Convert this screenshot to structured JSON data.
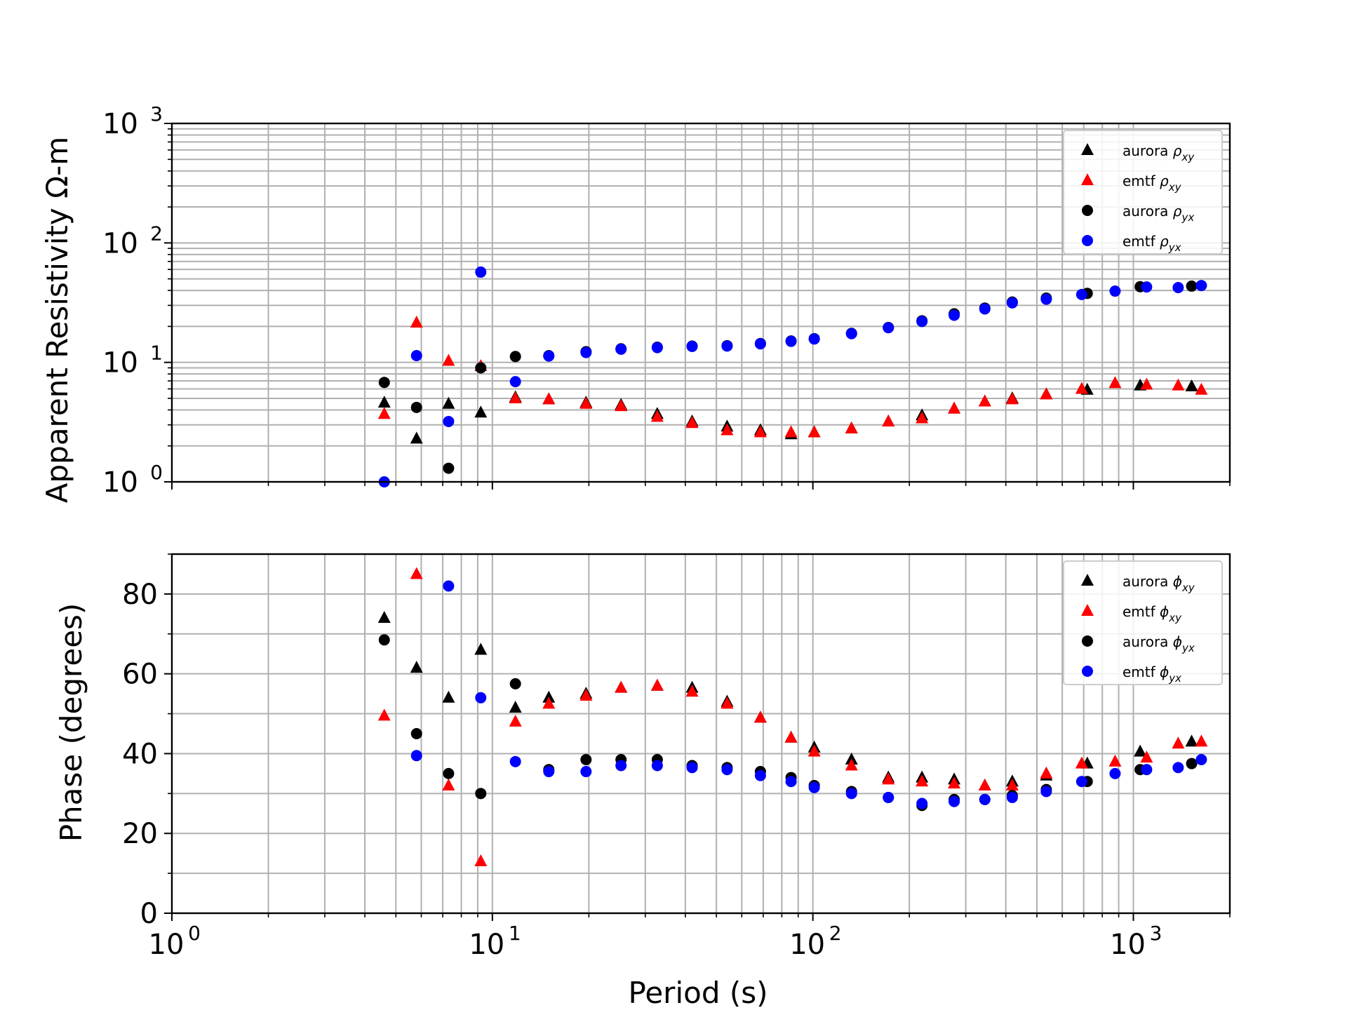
{
  "chart_data": [
    {
      "type": "scatter",
      "ylabel": "Apparent Resistivity Ω-m",
      "xlabel": "",
      "xscale": "log",
      "yscale": "log",
      "xlim": [
        1,
        2000
      ],
      "ylim": [
        1,
        1000
      ],
      "y_ticks": [
        {
          "value": 1,
          "base": "10",
          "exp": "0"
        },
        {
          "value": 10,
          "base": "10",
          "exp": "1"
        },
        {
          "value": 100,
          "base": "10",
          "exp": "2"
        },
        {
          "value": 1000,
          "base": "10",
          "exp": "3"
        }
      ],
      "grid": true,
      "legend_position": "top-right",
      "series": [
        {
          "name": "aurora",
          "sub": "xy",
          "marker": "triangle",
          "color": "#000000",
          "points": [
            [
              4.6,
              4.6
            ],
            [
              5.8,
              2.3
            ],
            [
              7.3,
              4.5
            ],
            [
              9.2,
              3.8
            ],
            [
              11.8,
              5.1
            ],
            [
              15.0,
              4.9
            ],
            [
              19.6,
              4.6
            ],
            [
              25.2,
              4.4
            ],
            [
              32.7,
              3.7
            ],
            [
              42.0,
              3.2
            ],
            [
              54.0,
              2.9
            ],
            [
              68.6,
              2.7
            ],
            [
              85.5,
              2.5
            ],
            [
              101.0,
              2.6
            ],
            [
              132.0,
              2.8
            ],
            [
              172.0,
              3.2
            ],
            [
              219.0,
              3.6
            ],
            [
              276.0,
              4.1
            ],
            [
              344.0,
              4.7
            ],
            [
              419.0,
              5.0
            ],
            [
              535.0,
              5.4
            ],
            [
              718.0,
              5.9
            ],
            [
              1050.0,
              6.4
            ],
            [
              1520.0,
              6.3
            ]
          ]
        },
        {
          "name": "emtf",
          "sub": "xy",
          "marker": "triangle",
          "color": "#ff0000",
          "points": [
            [
              4.6,
              3.7
            ],
            [
              5.8,
              21.5
            ],
            [
              7.3,
              10.3
            ],
            [
              9.2,
              9.3
            ],
            [
              11.8,
              5.0
            ],
            [
              15.0,
              4.9
            ],
            [
              19.6,
              4.5
            ],
            [
              25.2,
              4.3
            ],
            [
              32.7,
              3.5
            ],
            [
              42.0,
              3.1
            ],
            [
              54.0,
              2.7
            ],
            [
              68.6,
              2.6
            ],
            [
              85.5,
              2.6
            ],
            [
              101.0,
              2.6
            ],
            [
              132.0,
              2.8
            ],
            [
              172.0,
              3.2
            ],
            [
              219.0,
              3.4
            ],
            [
              276.0,
              4.1
            ],
            [
              344.0,
              4.7
            ],
            [
              419.0,
              4.9
            ],
            [
              535.0,
              5.4
            ],
            [
              690.0,
              6.0
            ],
            [
              877.0,
              6.7
            ],
            [
              1100.0,
              6.5
            ],
            [
              1380.0,
              6.4
            ],
            [
              1630.0,
              5.9
            ]
          ]
        },
        {
          "name": "aurora",
          "sub": "yx",
          "marker": "circle",
          "color": "#000000",
          "points": [
            [
              4.6,
              6.8
            ],
            [
              5.8,
              4.2
            ],
            [
              7.3,
              1.3
            ],
            [
              9.2,
              9.0
            ],
            [
              11.8,
              11.2
            ],
            [
              15.0,
              11.4
            ],
            [
              19.6,
              12.3
            ],
            [
              25.2,
              13.0
            ],
            [
              32.7,
              13.4
            ],
            [
              42.0,
              13.7
            ],
            [
              54.0,
              13.8
            ],
            [
              68.6,
              14.4
            ],
            [
              85.5,
              15.1
            ],
            [
              101.0,
              15.8
            ],
            [
              132.0,
              17.5
            ],
            [
              172.0,
              19.6
            ],
            [
              219.0,
              22.3
            ],
            [
              276.0,
              25.5
            ],
            [
              344.0,
              28.5
            ],
            [
              419.0,
              32.0
            ],
            [
              535.0,
              34.5
            ],
            [
              718.0,
              37.8
            ],
            [
              1050.0,
              43.0
            ],
            [
              1520.0,
              43.5
            ]
          ]
        },
        {
          "name": "emtf",
          "sub": "yx",
          "marker": "circle",
          "color": "#0000ff",
          "points": [
            [
              4.6,
              1.0
            ],
            [
              5.8,
              11.4
            ],
            [
              7.3,
              3.2
            ],
            [
              9.2,
              57.0
            ],
            [
              11.8,
              6.9
            ],
            [
              15.0,
              11.3
            ],
            [
              19.6,
              12.1
            ],
            [
              25.2,
              12.9
            ],
            [
              32.7,
              13.3
            ],
            [
              42.0,
              13.6
            ],
            [
              54.0,
              13.7
            ],
            [
              68.6,
              14.3
            ],
            [
              85.5,
              15.0
            ],
            [
              101.0,
              15.7
            ],
            [
              132.0,
              17.4
            ],
            [
              172.0,
              19.5
            ],
            [
              219.0,
              22.0
            ],
            [
              276.0,
              24.8
            ],
            [
              344.0,
              28.0
            ],
            [
              419.0,
              31.5
            ],
            [
              535.0,
              33.8
            ],
            [
              690.0,
              37.0
            ],
            [
              877.0,
              39.5
            ],
            [
              1100.0,
              42.8
            ],
            [
              1380.0,
              42.3
            ],
            [
              1630.0,
              44.0
            ]
          ]
        }
      ]
    },
    {
      "type": "scatter",
      "ylabel": "Phase (degrees)",
      "xlabel": "Period (s)",
      "xscale": "log",
      "yscale": "linear",
      "xlim": [
        1,
        2000
      ],
      "ylim": [
        0,
        90
      ],
      "x_ticks": [
        {
          "value": 1,
          "base": "10",
          "exp": "0"
        },
        {
          "value": 10,
          "base": "10",
          "exp": "1"
        },
        {
          "value": 100,
          "base": "10",
          "exp": "2"
        },
        {
          "value": 1000,
          "base": "10",
          "exp": "3"
        }
      ],
      "y_ticks": [
        "0",
        "20",
        "40",
        "60",
        "80"
      ],
      "grid": true,
      "legend_position": "top-right",
      "series": [
        {
          "name": "aurora",
          "sub": "xy",
          "marker": "triangle",
          "color": "#000000",
          "points": [
            [
              4.6,
              74
            ],
            [
              5.8,
              61.5
            ],
            [
              7.3,
              54
            ],
            [
              9.2,
              66
            ],
            [
              11.8,
              51.5
            ],
            [
              15.0,
              54
            ],
            [
              19.6,
              55
            ],
            [
              25.2,
              56.5
            ],
            [
              32.7,
              57
            ],
            [
              42.0,
              56.5
            ],
            [
              54.0,
              53
            ],
            [
              68.6,
              49
            ],
            [
              85.5,
              44
            ],
            [
              101.0,
              41.5
            ],
            [
              132.0,
              38.5
            ],
            [
              172.0,
              34
            ],
            [
              219.0,
              34
            ],
            [
              276.0,
              33.5
            ],
            [
              344.0,
              32
            ],
            [
              419.0,
              33
            ],
            [
              535.0,
              34.5
            ],
            [
              718.0,
              37.5
            ],
            [
              1050.0,
              40.5
            ],
            [
              1520.0,
              43
            ]
          ]
        },
        {
          "name": "emtf",
          "sub": "xy",
          "marker": "triangle",
          "color": "#ff0000",
          "points": [
            [
              4.6,
              49.5
            ],
            [
              5.8,
              85
            ],
            [
              7.3,
              32
            ],
            [
              9.2,
              13
            ],
            [
              11.8,
              48
            ],
            [
              15.0,
              52.5
            ],
            [
              19.6,
              54.5
            ],
            [
              25.2,
              56.5
            ],
            [
              32.7,
              57
            ],
            [
              42.0,
              55.5
            ],
            [
              54.0,
              52.5
            ],
            [
              68.6,
              49
            ],
            [
              85.5,
              44
            ],
            [
              101.0,
              40.5
            ],
            [
              132.0,
              37
            ],
            [
              172.0,
              33.5
            ],
            [
              219.0,
              33
            ],
            [
              276.0,
              32.5
            ],
            [
              344.0,
              32
            ],
            [
              419.0,
              32
            ],
            [
              535.0,
              35
            ],
            [
              690.0,
              37.5
            ],
            [
              877.0,
              38
            ],
            [
              1100.0,
              39
            ],
            [
              1380.0,
              42.5
            ],
            [
              1630.0,
              43
            ]
          ]
        },
        {
          "name": "aurora",
          "sub": "yx",
          "marker": "circle",
          "color": "#000000",
          "points": [
            [
              4.6,
              68.5
            ],
            [
              5.8,
              45
            ],
            [
              7.3,
              35
            ],
            [
              9.2,
              30
            ],
            [
              11.8,
              57.5
            ],
            [
              15.0,
              36
            ],
            [
              19.6,
              38.5
            ],
            [
              25.2,
              38.5
            ],
            [
              32.7,
              38.5
            ],
            [
              42.0,
              37
            ],
            [
              54.0,
              36.5
            ],
            [
              68.6,
              35.5
            ],
            [
              85.5,
              34
            ],
            [
              101.0,
              32
            ],
            [
              132.0,
              30.5
            ],
            [
              172.0,
              29
            ],
            [
              219.0,
              27
            ],
            [
              276.0,
              28.5
            ],
            [
              344.0,
              28.5
            ],
            [
              419.0,
              29.5
            ],
            [
              535.0,
              31
            ],
            [
              718.0,
              33
            ],
            [
              1050.0,
              36
            ],
            [
              1520.0,
              37.5
            ]
          ]
        },
        {
          "name": "emtf",
          "sub": "yx",
          "marker": "circle",
          "color": "#0000ff",
          "points": [
            [
              4.6,
              null
            ],
            [
              5.8,
              39.5
            ],
            [
              7.3,
              82
            ],
            [
              9.2,
              54
            ],
            [
              11.8,
              38
            ],
            [
              15.0,
              35.5
            ],
            [
              19.6,
              35.5
            ],
            [
              25.2,
              37
            ],
            [
              32.7,
              37
            ],
            [
              42.0,
              36.5
            ],
            [
              54.0,
              36
            ],
            [
              68.6,
              34.5
            ],
            [
              85.5,
              33
            ],
            [
              101.0,
              31.5
            ],
            [
              132.0,
              30
            ],
            [
              172.0,
              29
            ],
            [
              219.0,
              27.5
            ],
            [
              276.0,
              28
            ],
            [
              344.0,
              28.5
            ],
            [
              419.0,
              29
            ],
            [
              535.0,
              30.5
            ],
            [
              690.0,
              33
            ],
            [
              877.0,
              35
            ],
            [
              1100.0,
              36
            ],
            [
              1380.0,
              36.5
            ],
            [
              1630.0,
              38.5
            ]
          ]
        }
      ]
    }
  ],
  "legend_top": [
    "aurora ",
    "emtf ",
    "aurora ",
    "emtf "
  ],
  "legend_bottom": [
    "aurora ",
    "emtf ",
    "aurora ",
    "emtf "
  ]
}
